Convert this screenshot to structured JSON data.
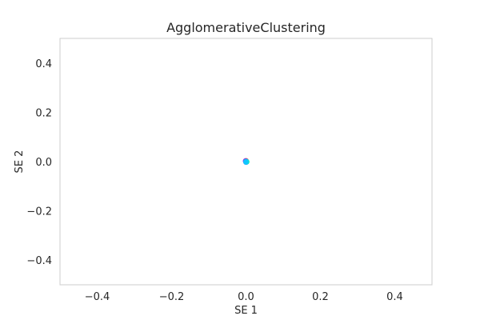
{
  "chart_data": {
    "type": "scatter",
    "title": "AgglomerativeClustering",
    "xlabel": "SE 1",
    "ylabel": "SE 2",
    "xlim": [
      -0.5,
      0.5
    ],
    "ylim": [
      -0.5,
      0.5
    ],
    "xticks": [
      -0.4,
      -0.2,
      0.0,
      0.2,
      0.4
    ],
    "yticks": [
      -0.4,
      -0.2,
      0.0,
      0.2,
      0.4
    ],
    "xtick_labels": [
      "−0.4",
      "−0.2",
      "0.0",
      "0.2",
      "0.4"
    ],
    "ytick_labels": [
      "−0.4",
      "−0.2",
      "0.0",
      "0.2",
      "0.4"
    ],
    "grid": false,
    "series": [
      {
        "color": "#ff2a00",
        "points": [
          {
            "x": 0.0,
            "y": 0.003
          }
        ]
      },
      {
        "color": "#7cff00",
        "points": [
          {
            "x": 0.001,
            "y": 0.0
          }
        ]
      },
      {
        "color": "#00ff9c",
        "points": [
          {
            "x": 0.002,
            "y": -0.001
          }
        ]
      },
      {
        "color": "#1e90ff",
        "points": [
          {
            "x": 0.0,
            "y": -0.002
          }
        ]
      },
      {
        "color": "#7a00ff",
        "points": [
          {
            "x": -0.001,
            "y": 0.002
          }
        ]
      },
      {
        "color": "#00e5ff",
        "points": [
          {
            "x": 0.0,
            "y": 0.0
          }
        ]
      }
    ]
  }
}
